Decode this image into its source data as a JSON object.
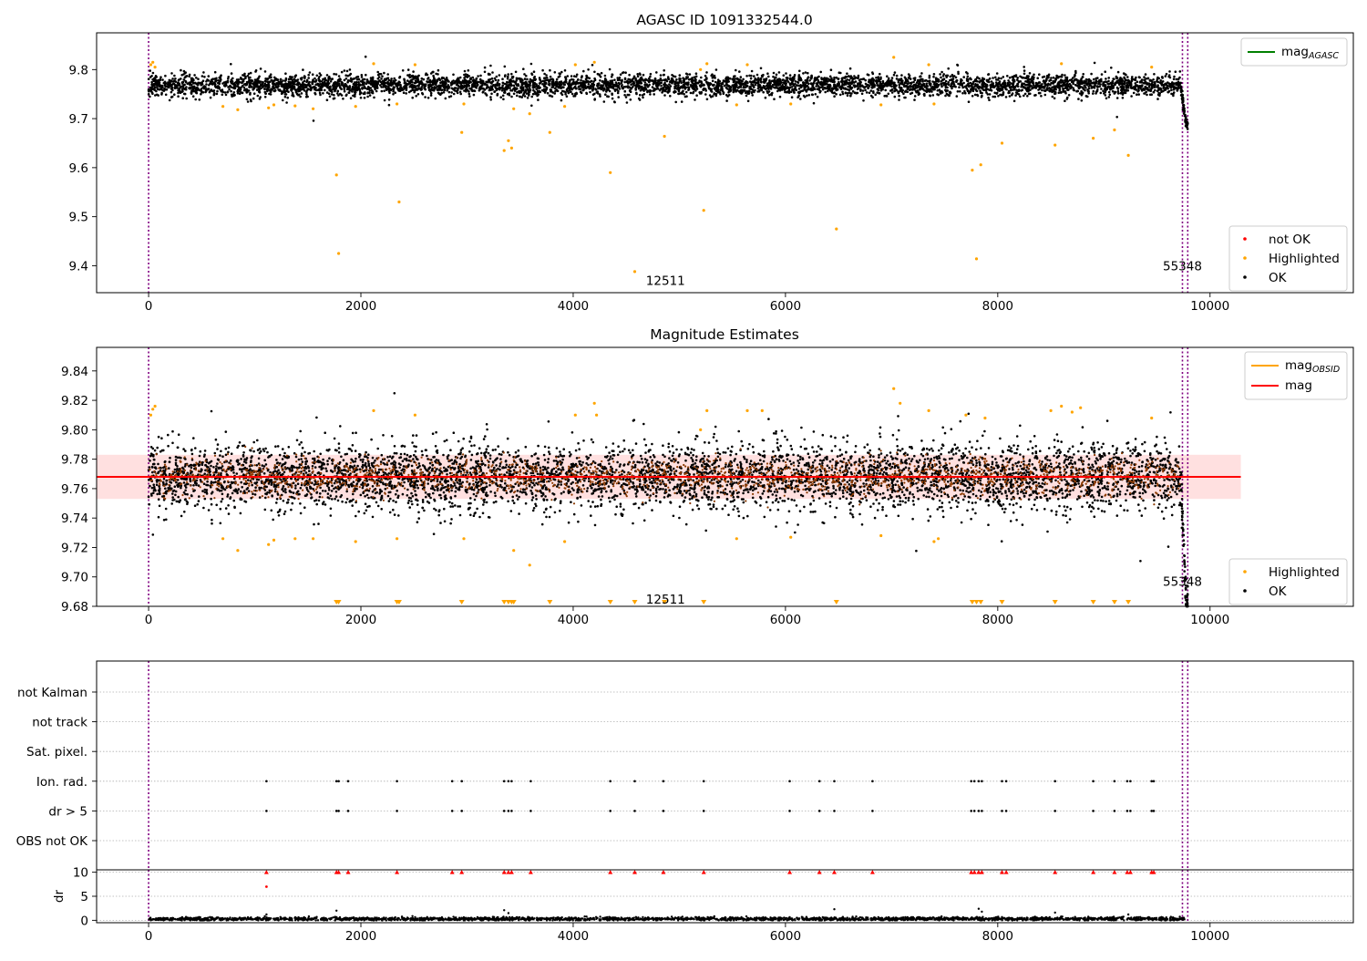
{
  "chart_data": [
    {
      "type": "scatter",
      "title": "AGASC ID 1091332544.0",
      "xlabel": "",
      "ylabel": "",
      "xlim": [
        -490,
        11350
      ],
      "ylim": [
        9.345,
        9.875
      ],
      "x_ticks": [
        0,
        2000,
        4000,
        6000,
        8000,
        10000
      ],
      "y_ticks": [
        9.4,
        9.5,
        9.6,
        9.7,
        9.8
      ],
      "y_tick_labels": [
        "9.4",
        "9.5",
        "9.6",
        "9.7",
        "9.8"
      ],
      "vlines": [
        0,
        9740,
        9790
      ],
      "legend_line": {
        "label_main": "mag",
        "label_sub": "AGASC",
        "color": "#008000",
        "placement": "upper right"
      },
      "legend_points": [
        {
          "label": "not OK",
          "color": "#ff0000"
        },
        {
          "label": "Highlighted",
          "color": "#ffa500"
        },
        {
          "label": "OK",
          "color": "#000000"
        }
      ],
      "legend_points_placement": "lower right",
      "annotations": [
        {
          "text": "12511",
          "x": 4870,
          "y": 9.37
        },
        {
          "text": "55348",
          "x": 9740,
          "y": 9.4
        }
      ],
      "ok_band": {
        "x_start": 0,
        "x_end": 9720,
        "y_center": 9.768,
        "y_spread": 0.025
      },
      "drop_segment": {
        "x_start": 9725,
        "x_end": 9790,
        "y_from": 9.765,
        "y_to": 9.69
      },
      "highlighted_points": [
        [
          20,
          9.81
        ],
        [
          40,
          9.815
        ],
        [
          60,
          9.805
        ],
        [
          700,
          9.725
        ],
        [
          840,
          9.718
        ],
        [
          1130,
          9.722
        ],
        [
          1180,
          9.728
        ],
        [
          1380,
          9.726
        ],
        [
          1550,
          9.72
        ],
        [
          1770,
          9.585
        ],
        [
          1790,
          9.425
        ],
        [
          1950,
          9.725
        ],
        [
          2120,
          9.812
        ],
        [
          2340,
          9.73
        ],
        [
          2360,
          9.53
        ],
        [
          2510,
          9.81
        ],
        [
          2950,
          9.672
        ],
        [
          2970,
          9.73
        ],
        [
          3350,
          9.635
        ],
        [
          3390,
          9.655
        ],
        [
          3420,
          9.64
        ],
        [
          3440,
          9.72
        ],
        [
          3590,
          9.71
        ],
        [
          3780,
          9.672
        ],
        [
          3920,
          9.725
        ],
        [
          4020,
          9.81
        ],
        [
          4200,
          9.815
        ],
        [
          4350,
          9.59
        ],
        [
          4580,
          9.388
        ],
        [
          4860,
          9.664
        ],
        [
          5200,
          9.8
        ],
        [
          5230,
          9.513
        ],
        [
          5260,
          9.812
        ],
        [
          5540,
          9.728
        ],
        [
          5640,
          9.81
        ],
        [
          6050,
          9.73
        ],
        [
          6480,
          9.475
        ],
        [
          6900,
          9.728
        ],
        [
          7020,
          9.825
        ],
        [
          7350,
          9.81
        ],
        [
          7400,
          9.73
        ],
        [
          7760,
          9.595
        ],
        [
          7800,
          9.414
        ],
        [
          7840,
          9.606
        ],
        [
          8040,
          9.65
        ],
        [
          8540,
          9.646
        ],
        [
          8600,
          9.812
        ],
        [
          8900,
          9.66
        ],
        [
          9100,
          9.677
        ],
        [
          9230,
          9.625
        ],
        [
          9450,
          9.805
        ]
      ]
    },
    {
      "type": "scatter",
      "title": "Magnitude Estimates",
      "xlabel": "",
      "ylabel": "",
      "xlim": [
        -490,
        11350
      ],
      "ylim": [
        9.68,
        9.856
      ],
      "x_ticks": [
        0,
        2000,
        4000,
        6000,
        8000,
        10000
      ],
      "y_ticks": [
        9.68,
        9.7,
        9.72,
        9.74,
        9.76,
        9.78,
        9.8,
        9.82,
        9.84
      ],
      "y_tick_labels": [
        "9.68",
        "9.70",
        "9.72",
        "9.74",
        "9.76",
        "9.78",
        "9.80",
        "9.82",
        "9.84"
      ],
      "vlines": [
        0,
        9740,
        9790
      ],
      "mag_line": {
        "y": 9.768,
        "x_start": -490,
        "x_end": 10290,
        "band": [
          9.753,
          9.783
        ],
        "color": "#ff0000"
      },
      "legend_lines": [
        {
          "label_main": "mag",
          "label_sub": "OBSID",
          "color": "#ffa500"
        },
        {
          "label_main": "mag",
          "label_sub": "",
          "color": "#ff0000"
        }
      ],
      "legend_lines_placement": "upper right",
      "legend_points": [
        {
          "label": "Highlighted",
          "color": "#ffa500"
        },
        {
          "label": "OK",
          "color": "#000000"
        }
      ],
      "legend_points_placement": "lower right",
      "annotations": [
        {
          "text": "12511",
          "x": 4870,
          "y": 9.685
        },
        {
          "text": "55348",
          "x": 9740,
          "y": 9.697
        }
      ],
      "ok_band": {
        "x_start": 0,
        "x_end": 9720,
        "y_center": 9.768,
        "y_spread": 0.03
      },
      "drop_segment": {
        "x_start": 9725,
        "x_end": 9790,
        "y_from": 9.765,
        "y_to": 9.685
      },
      "off_scale_triangles_x": [
        1770,
        1790,
        2340,
        2360,
        2950,
        3350,
        3390,
        3420,
        3440,
        3780,
        4350,
        4580,
        4860,
        5230,
        6480,
        7760,
        7800,
        7840,
        8040,
        8540,
        8900,
        9100,
        9230
      ],
      "highlighted_points": [
        [
          20,
          9.81
        ],
        [
          40,
          9.814
        ],
        [
          60,
          9.816
        ],
        [
          700,
          9.726
        ],
        [
          840,
          9.718
        ],
        [
          1130,
          9.722
        ],
        [
          1180,
          9.725
        ],
        [
          1380,
          9.726
        ],
        [
          1550,
          9.726
        ],
        [
          1950,
          9.724
        ],
        [
          2120,
          9.813
        ],
        [
          2340,
          9.726
        ],
        [
          2510,
          9.81
        ],
        [
          2970,
          9.726
        ],
        [
          3440,
          9.718
        ],
        [
          3590,
          9.708
        ],
        [
          3920,
          9.724
        ],
        [
          4020,
          9.81
        ],
        [
          4200,
          9.818
        ],
        [
          4220,
          9.81
        ],
        [
          5200,
          9.8
        ],
        [
          5260,
          9.813
        ],
        [
          5540,
          9.726
        ],
        [
          5640,
          9.813
        ],
        [
          5780,
          9.813
        ],
        [
          6050,
          9.727
        ],
        [
          6900,
          9.728
        ],
        [
          7020,
          9.828
        ],
        [
          7080,
          9.818
        ],
        [
          7350,
          9.813
        ],
        [
          7400,
          9.724
        ],
        [
          7440,
          9.726
        ],
        [
          7700,
          9.81
        ],
        [
          7880,
          9.808
        ],
        [
          8500,
          9.813
        ],
        [
          8600,
          9.816
        ],
        [
          8700,
          9.812
        ],
        [
          8780,
          9.815
        ],
        [
          9450,
          9.808
        ]
      ]
    },
    {
      "type": "scatter",
      "title": "",
      "xlabel": "",
      "ylabel": "",
      "xlim": [
        -490,
        11350
      ],
      "vlines": [
        0,
        9740,
        9790
      ],
      "flag_rows": [
        "not Kalman",
        "not track",
        "Sat. pixel.",
        "Ion. rad.",
        "dr > 5",
        "OBS not OK"
      ],
      "flag_x": [
        1110,
        1770,
        1790,
        1880,
        2340,
        2860,
        2950,
        3350,
        3390,
        3420,
        3600,
        4350,
        4580,
        4850,
        5230,
        6040,
        6320,
        6460,
        6820,
        7750,
        7780,
        7820,
        7850,
        8040,
        8080,
        8540,
        8900,
        9100,
        9220,
        9250,
        9450,
        9470
      ],
      "flagged_rows": [
        "Ion. rad.",
        "dr > 5"
      ]
    },
    {
      "type": "scatter",
      "title": "",
      "xlabel": "",
      "ylabel": "dr",
      "xlim": [
        -490,
        11350
      ],
      "ylim": [
        -0.5,
        10.5
      ],
      "y_ticks": [
        0,
        5,
        10
      ],
      "x_ticks": [
        0,
        2000,
        4000,
        6000,
        8000,
        10000
      ],
      "vlines": [
        0,
        9740,
        9790
      ],
      "capped_x": [
        1110,
        1770,
        1790,
        1880,
        2340,
        2860,
        2950,
        3350,
        3390,
        3420,
        3600,
        4350,
        4580,
        4850,
        5230,
        6040,
        6320,
        6460,
        6820,
        7750,
        7780,
        7820,
        7850,
        8040,
        8080,
        8540,
        8900,
        9100,
        9220,
        9250,
        9450,
        9470
      ],
      "capped_value": 10,
      "extra_not_ok_points": [
        [
          1110,
          7
        ]
      ],
      "baseline_band": {
        "x_start": 0,
        "x_end": 9780,
        "y_center": 0.3,
        "y_spread": 0.3
      },
      "outliers": [
        [
          1110,
          1.2
        ],
        [
          1770,
          2.0
        ],
        [
          3350,
          2.1
        ],
        [
          3390,
          1.5
        ],
        [
          6460,
          2.3
        ],
        [
          7820,
          2.4
        ],
        [
          7850,
          1.8
        ],
        [
          8540,
          1.6
        ],
        [
          9230,
          1.2
        ]
      ]
    }
  ]
}
